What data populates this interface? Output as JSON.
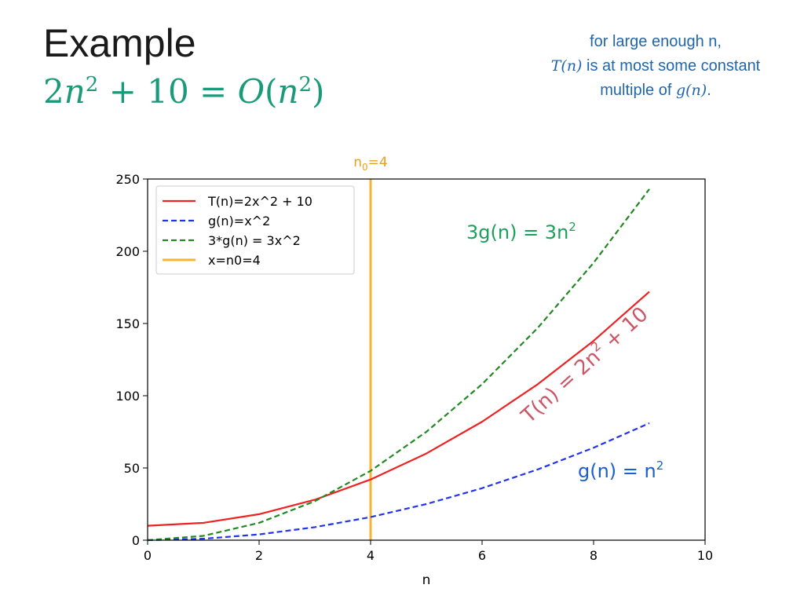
{
  "slide": {
    "title": "Example",
    "formula": {
      "lhs_coef": "2",
      "lhs_var": "n",
      "lhs_exp": "2",
      "lhs_rest": " + 10 = ",
      "big_o": "O",
      "paren_open": "(",
      "arg_var": "n",
      "arg_exp": "2",
      "paren_close": ")"
    },
    "note": {
      "line1": "for large enough n,",
      "line2_math": "T(n)",
      "line2_text": " is at most some constant",
      "line3_text": "multiple of ",
      "line3_math": "g(n)",
      "line3_end": "."
    }
  },
  "colors": {
    "t_line": "#ee2222",
    "g_line": "#2233ee",
    "three_g_line": "#228822",
    "n0_line": "#f5b433",
    "n0_label": "#e8a020",
    "annot_3g": "#1aa05a",
    "annot_t": "#cc5566",
    "annot_g": "#1a5fd0",
    "title_formula": "#1a9a78",
    "note": "#2266aa"
  },
  "chart_data": {
    "type": "line",
    "xlabel": "n",
    "ylabel": "",
    "xlim": [
      0,
      10
    ],
    "ylim": [
      0,
      250
    ],
    "x_ticks": [
      0,
      2,
      4,
      6,
      8,
      10
    ],
    "y_ticks": [
      0,
      50,
      100,
      150,
      200,
      250
    ],
    "grid": false,
    "legend_position": "top-left",
    "x": [
      0,
      1,
      2,
      3,
      4,
      5,
      6,
      7,
      8,
      9
    ],
    "series": [
      {
        "name": "T(n)=2x^2 + 10",
        "values": [
          10,
          12,
          18,
          28,
          42,
          60,
          82,
          108,
          138,
          172
        ],
        "style": "solid",
        "color_key": "t_line"
      },
      {
        "name": "g(n)=x^2",
        "values": [
          0,
          1,
          4,
          9,
          16,
          25,
          36,
          49,
          64,
          81
        ],
        "style": "dashed",
        "color_key": "g_line"
      },
      {
        "name": "3*g(n) = 3x^2",
        "values": [
          0,
          3,
          12,
          27,
          48,
          75,
          108,
          147,
          192,
          243
        ],
        "style": "dashed",
        "color_key": "three_g_line"
      }
    ],
    "vline": {
      "name": "x=n0=4",
      "x": 4,
      "color_key": "n0_line"
    },
    "vline_top_label": {
      "base": "n",
      "sub": "0",
      "rest": "=4"
    },
    "annotations": {
      "three_g": {
        "text": "3g(n) = 3n",
        "sup": "2"
      },
      "t": {
        "text_a": "T(n) = 2n",
        "sup": "2",
        "text_b": " + 10"
      },
      "g": {
        "text": "g(n) = n",
        "sup": "2"
      }
    }
  }
}
